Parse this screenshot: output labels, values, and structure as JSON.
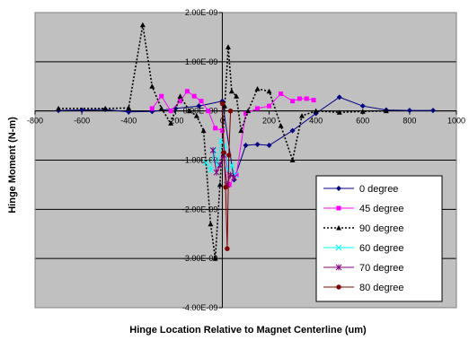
{
  "chart_data": {
    "type": "line",
    "title": "",
    "xlabel": "Hinge Location Relative to Magnet Centerline (um)",
    "ylabel": "Hinge Moment (N-m)",
    "xlim": [
      -800,
      1000
    ],
    "ylim": [
      -4e-09,
      2e-09
    ],
    "x_ticks": [
      -800,
      -600,
      -400,
      -200,
      0,
      200,
      400,
      600,
      800,
      1000
    ],
    "x_tick_labels": [
      "-800",
      "-600",
      "-400",
      "-200",
      "0",
      "200",
      "400",
      "600",
      "800",
      "1000"
    ],
    "y_ticks": [
      -4e-09,
      -3e-09,
      -2e-09,
      -1e-09,
      0,
      1e-09,
      2e-09
    ],
    "y_tick_labels": [
      "-4.00E-09",
      "-3.00E-09",
      "-2.00E-09",
      "-1.00E-09",
      "0.00E+00",
      "1.00E-09",
      "2.00E-09"
    ],
    "grid": "horizontal",
    "plot_background": "#c0c0c0",
    "legend_position": "lower-right",
    "series": [
      {
        "name": "0 degree",
        "color": "#000080",
        "marker": "diamond",
        "dash": "solid",
        "x": [
          -700,
          -600,
          -500,
          -400,
          -300,
          -200,
          -100,
          0,
          50,
          100,
          150,
          200,
          300,
          400,
          500,
          600,
          700,
          800,
          900
        ],
        "y": [
          1e-11,
          2e-11,
          3e-11,
          -2e-11,
          -1e-11,
          5e-11,
          1e-10,
          2e-10,
          -1.4e-09,
          -7e-10,
          -6.8e-10,
          -7e-10,
          -4e-10,
          -5e-11,
          2.8e-10,
          1e-10,
          2e-11,
          1e-11,
          1e-11
        ]
      },
      {
        "name": "45 degree",
        "color": "#ff00ff",
        "marker": "square",
        "dash": "solid",
        "x": [
          -300,
          -260,
          -220,
          -180,
          -150,
          -120,
          -90,
          -60,
          -30,
          0,
          30,
          60,
          100,
          150,
          200,
          250,
          300,
          330,
          360,
          390
        ],
        "y": [
          5e-11,
          3e-10,
          0,
          2e-10,
          4e-10,
          3e-10,
          2e-10,
          0,
          -3.5e-10,
          -4e-10,
          -1.5e-09,
          -1.3e-09,
          -5e-11,
          5e-11,
          1e-10,
          3.5e-10,
          2e-10,
          2.5e-10,
          2.5e-10,
          2.2e-10
        ]
      },
      {
        "name": "90 degree",
        "color": "#000000",
        "marker": "triangle",
        "dash": "dotted",
        "x": [
          -700,
          -500,
          -400,
          -340,
          -300,
          -260,
          -220,
          -180,
          -140,
          -110,
          -80,
          -50,
          -30,
          -10,
          10,
          25,
          40,
          60,
          80,
          110,
          150,
          200,
          250,
          300,
          340,
          400,
          500,
          600,
          700
        ],
        "y": [
          5e-11,
          5e-11,
          6e-11,
          1.75e-09,
          5e-10,
          5e-11,
          -2.5e-10,
          3e-10,
          0,
          -1e-10,
          -4e-10,
          -2.3e-09,
          -3e-09,
          -1.5e-09,
          1e-10,
          1.3e-09,
          4e-10,
          3e-10,
          -4e-10,
          0,
          4.5e-10,
          4e-10,
          -3e-10,
          -1e-09,
          -1e-10,
          0,
          -3e-11,
          -1e-11,
          0
        ]
      },
      {
        "name": "60 degree",
        "color": "#00ffff",
        "marker": "x",
        "dash": "solid",
        "x": [
          -70,
          -50,
          -35,
          -20,
          -5,
          10,
          25,
          40,
          55
        ],
        "y": [
          -1.05e-09,
          -1.2e-09,
          -8e-10,
          -1.1e-09,
          -6e-10,
          -7e-10,
          -1.2e-09,
          -1.1e-09,
          -1.3e-09
        ]
      },
      {
        "name": "70 degree",
        "color": "#800080",
        "marker": "star",
        "dash": "solid",
        "x": [
          -40,
          -25,
          -10,
          5,
          20,
          35,
          50
        ],
        "y": [
          -8e-10,
          -1.25e-09,
          -1.1e-09,
          -9e-10,
          -1.5e-09,
          -1.3e-09,
          -1.35e-09
        ]
      },
      {
        "name": "80 degree",
        "color": "#800000",
        "marker": "circle",
        "dash": "solid",
        "x": [
          0,
          7,
          14,
          21,
          28,
          35
        ],
        "y": [
          1.5e-10,
          -8.5e-10,
          -1.55e-09,
          -2.8e-09,
          -9e-10,
          0
        ]
      }
    ]
  }
}
